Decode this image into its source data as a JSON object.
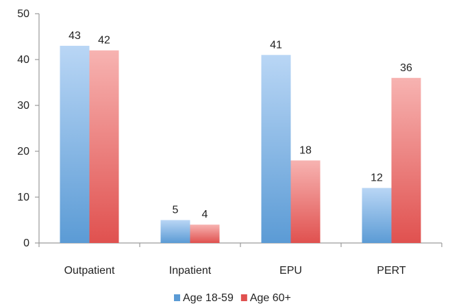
{
  "chart_data": {
    "type": "bar",
    "categories": [
      "Outpatient",
      "Inpatient",
      "EPU",
      "PERT"
    ],
    "series": [
      {
        "name": "Age 18-59",
        "values": [
          43,
          5,
          41,
          12
        ],
        "color": "#5b9bd5",
        "color_light": "#b9d6f5"
      },
      {
        "name": "Age 60+",
        "values": [
          42,
          4,
          18,
          36
        ],
        "color": "#e0514f",
        "color_light": "#f7b3b1"
      }
    ],
    "title": "",
    "xlabel": "",
    "ylabel": "",
    "ylim": [
      0,
      50
    ],
    "yticks": [
      0,
      10,
      20,
      30,
      40,
      50
    ],
    "grid": false,
    "legend_position": "bottom"
  }
}
